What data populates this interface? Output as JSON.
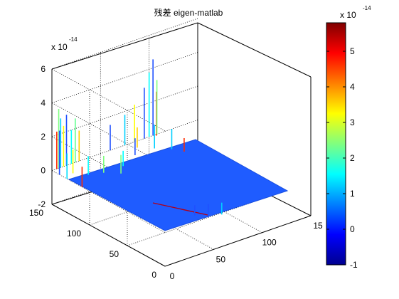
{
  "chart_data": {
    "type": "surface3d",
    "title": "残差 eigen-matlab",
    "z_scale_label": "x 10",
    "z_scale_exponent": "-14",
    "x_ticks": [
      "0",
      "50",
      "100",
      "15"
    ],
    "y_ticks": [
      "0",
      "50",
      "100",
      "150"
    ],
    "z_ticks": [
      "-2",
      "0",
      "2",
      "4",
      "6"
    ],
    "zlim": [
      -2,
      6
    ],
    "grid": true,
    "surface_baseline": 0,
    "spikes": [
      {
        "x": 5,
        "y": 150,
        "z": 2.2,
        "color": "#ff2a00"
      },
      {
        "x": 7,
        "y": 150,
        "z": 3.5,
        "color": "#7fff7f"
      },
      {
        "x": 9,
        "y": 150,
        "z": 2.9,
        "color": "#00d0ff"
      },
      {
        "x": 12,
        "y": 150,
        "z": 2.4,
        "color": "#ffff00"
      },
      {
        "x": 15,
        "y": 150,
        "z": 3.0,
        "color": "#2050ff"
      },
      {
        "x": 20,
        "y": 150,
        "z": 2.0,
        "color": "#00ffff"
      },
      {
        "x": 24,
        "y": 150,
        "z": 2.6,
        "color": "#60ff90"
      },
      {
        "x": 28,
        "y": 150,
        "z": 1.8,
        "color": "#ffd000"
      },
      {
        "x": 0,
        "y": 140,
        "z": 2.6,
        "color": "#2050ff"
      },
      {
        "x": 0,
        "y": 130,
        "z": 1.5,
        "color": "#00e0ff"
      },
      {
        "x": 0,
        "y": 110,
        "z": 1.2,
        "color": "#ff2a00"
      },
      {
        "x": 10,
        "y": 135,
        "z": 1.4,
        "color": "#ffff00"
      },
      {
        "x": 18,
        "y": 125,
        "z": 1.1,
        "color": "#00ffff"
      },
      {
        "x": 30,
        "y": 120,
        "z": 1.0,
        "color": "#7fff7f"
      },
      {
        "x": 60,
        "y": 150,
        "z": 1.5,
        "color": "#2050ff"
      },
      {
        "x": 75,
        "y": 150,
        "z": 1.8,
        "color": "#00d0ff"
      },
      {
        "x": 85,
        "y": 150,
        "z": 2.2,
        "color": "#ffff00"
      },
      {
        "x": 95,
        "y": 150,
        "z": 3.0,
        "color": "#2050ff"
      },
      {
        "x": 100,
        "y": 150,
        "z": 3.8,
        "color": "#00ffff"
      },
      {
        "x": 104,
        "y": 150,
        "z": 4.5,
        "color": "#2050ff"
      },
      {
        "x": 106,
        "y": 148,
        "z": 2.6,
        "color": "#ff2a00"
      },
      {
        "x": 108,
        "y": 150,
        "z": 3.2,
        "color": "#7fff7f"
      },
      {
        "x": 90,
        "y": 130,
        "z": 1.4,
        "color": "#00d0ff"
      },
      {
        "x": 80,
        "y": 140,
        "z": 1.2,
        "color": "#ffd000"
      },
      {
        "x": 70,
        "y": 130,
        "z": 1.0,
        "color": "#2050ff"
      },
      {
        "x": 50,
        "y": 120,
        "z": 0.9,
        "color": "#00ffff"
      },
      {
        "x": 40,
        "y": 110,
        "z": 1.1,
        "color": "#7fff7f"
      },
      {
        "x": 100,
        "y": 120,
        "z": 1.2,
        "color": "#00d0ff"
      },
      {
        "x": 105,
        "y": 110,
        "z": 0.8,
        "color": "#ff2a00"
      },
      {
        "x": 60,
        "y": 20,
        "z": -0.8,
        "color": "#2050ff"
      },
      {
        "x": 70,
        "y": 15,
        "z": -0.7,
        "color": "#00d0ff"
      },
      {
        "x": 50,
        "y": 25,
        "z": -0.6,
        "color": "#2050ff"
      }
    ],
    "colorbar": {
      "range": [
        -1,
        5.8
      ],
      "ticks": [
        "-1",
        "0",
        "1",
        "2",
        "3",
        "4",
        "5"
      ],
      "scale_label": "x 10",
      "scale_exponent": "-14"
    }
  },
  "colors": {
    "surface": "#1f5cff",
    "surface_edge": "#1a4fe0",
    "diagonal_line": "#b0001a"
  }
}
